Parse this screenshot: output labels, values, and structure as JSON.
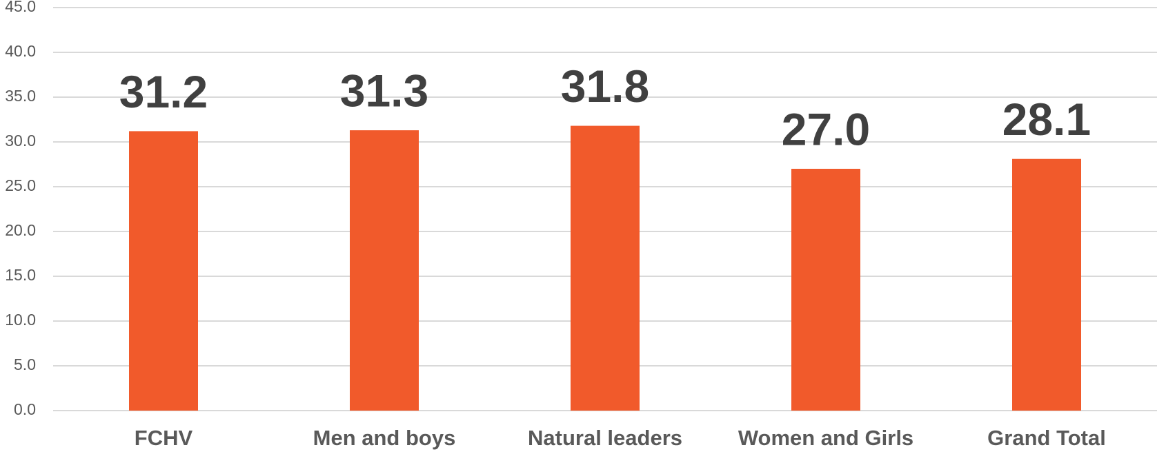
{
  "chart_data": {
    "type": "bar",
    "categories": [
      "FCHV",
      "Men and boys",
      "Natural leaders",
      "Women and Girls",
      "Grand Total"
    ],
    "values": [
      31.2,
      31.3,
      31.8,
      27.0,
      28.1
    ],
    "value_labels": [
      "31.2",
      "31.3",
      "31.8",
      "27.0",
      "28.1"
    ],
    "color": "#f15a2b",
    "ylim": [
      0,
      45
    ],
    "yticks": [
      {
        "value": 0,
        "label": "0.0"
      },
      {
        "value": 5,
        "label": "5.0"
      },
      {
        "value": 10,
        "label": "10.0"
      },
      {
        "value": 15,
        "label": "15.0"
      },
      {
        "value": 20,
        "label": "20.0"
      },
      {
        "value": 25,
        "label": "25.0"
      },
      {
        "value": 30,
        "label": "30.0"
      },
      {
        "value": 35,
        "label": "35.0"
      },
      {
        "value": 40,
        "label": "40.0"
      },
      {
        "value": 45,
        "label": "45.0"
      }
    ],
    "grid": true
  }
}
